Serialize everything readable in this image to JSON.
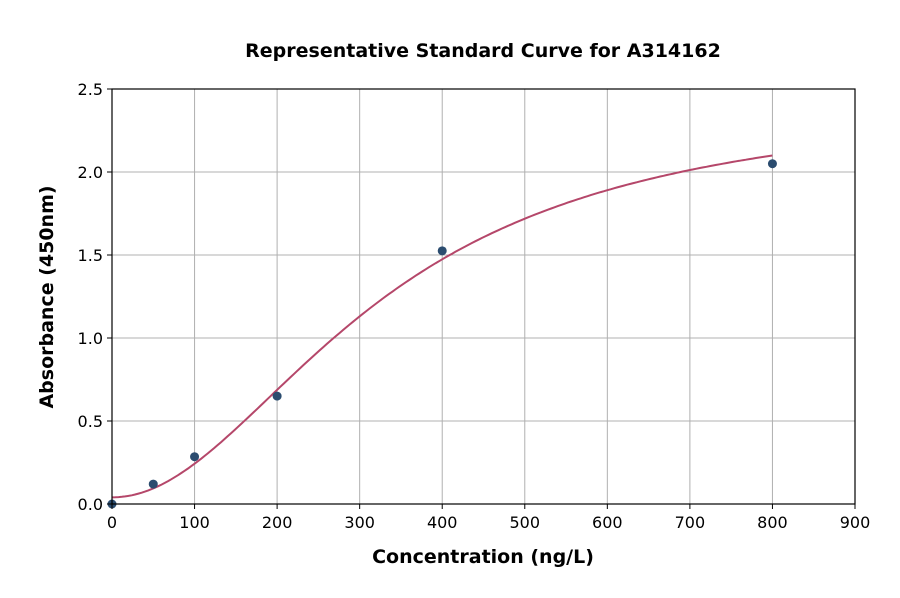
{
  "chart_data": {
    "type": "scatter",
    "title": "Representative Standard Curve for A314162",
    "xlabel": "Concentration (ng/L)",
    "ylabel": "Absorbance (450nm)",
    "xlim": [
      0,
      900
    ],
    "ylim": [
      0,
      2.5
    ],
    "xticks": [
      0,
      100,
      200,
      300,
      400,
      500,
      600,
      700,
      800,
      900
    ],
    "yticks": [
      "0.0",
      "0.5",
      "1.0",
      "1.5",
      "2.0",
      "2.5"
    ],
    "grid": true,
    "points": {
      "x": [
        0,
        50,
        100,
        200,
        400,
        800
      ],
      "y": [
        0.0,
        0.12,
        0.285,
        0.65,
        1.525,
        2.05
      ]
    },
    "fit_curve": {
      "type": "4PL",
      "a": 0.04,
      "b": 2.0,
      "c": 330,
      "d": 2.45
    },
    "colors": {
      "points": "#2b4c6f",
      "curve": "#b5476a",
      "grid": "#b0b0b0"
    }
  }
}
